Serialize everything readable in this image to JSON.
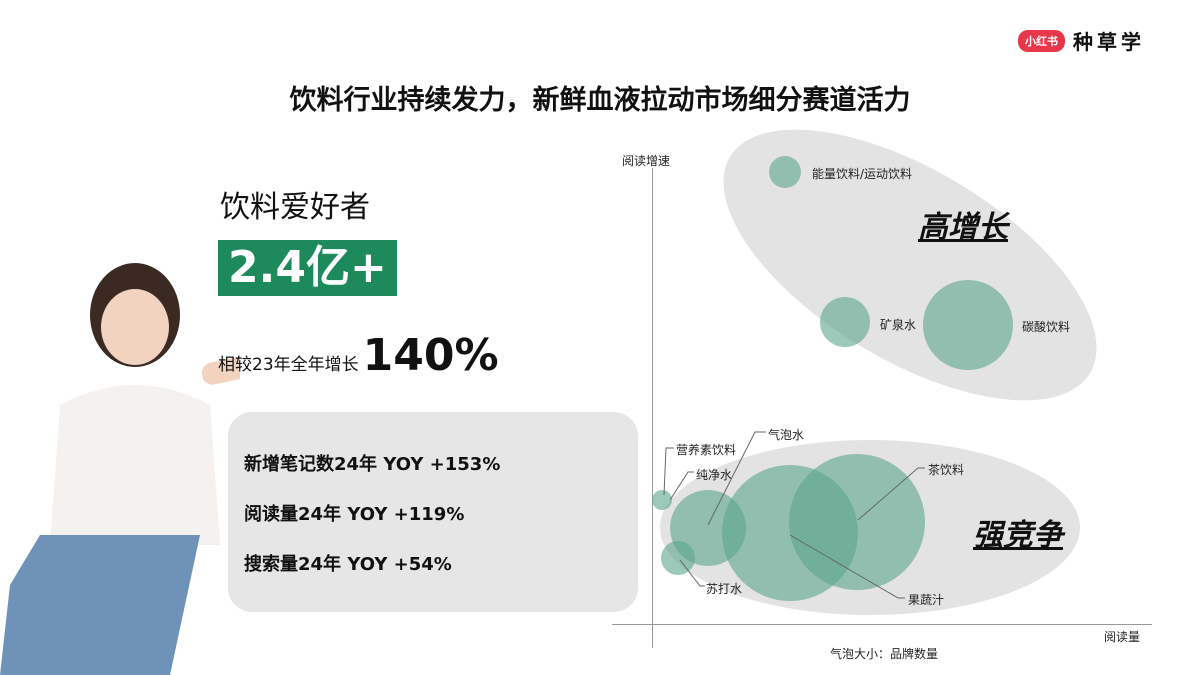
{
  "header": {
    "logo_badge": "小红书",
    "logo_text": "种草学",
    "title": "饮料行业持续发力，新鲜血液拉动市场细分赛道活力"
  },
  "left": {
    "fans_label": "饮料爱好者",
    "fans_value": "2.4亿+",
    "growth_label": "相较23年全年增长",
    "growth_value": "140%",
    "stats": [
      "新增笔记数24年 YOY +153%",
      "阅读量24年 YOY +119%",
      "搜索量24年 YOY +54%"
    ]
  },
  "chart": {
    "y_axis_label": "阅读增速",
    "x_axis_label": "阅读量",
    "bubble_note": "气泡大小：品牌数量",
    "zones": {
      "high_growth": "高增长",
      "competitive": "强竞争"
    },
    "bubbles": [
      "能量饮料/运动饮料",
      "矿泉水",
      "碳酸饮料",
      "营养素饮料",
      "气泡水",
      "纯净水",
      "苏打水",
      "茶饮料",
      "果蔬汁"
    ],
    "colors": {
      "bubble": "#8fbfae",
      "zone": "#e3e3e3",
      "accent": "#1d8a5c",
      "brand": "#e8374a"
    }
  }
}
